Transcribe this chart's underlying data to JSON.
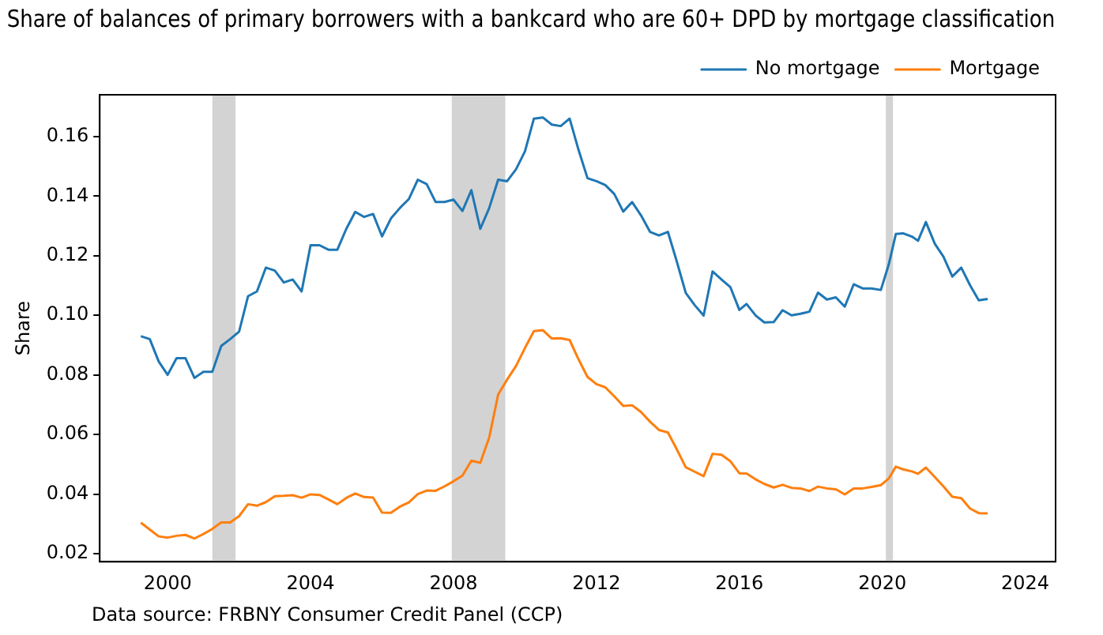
{
  "chart_data": {
    "type": "line",
    "title": "Share of balances of primary borrowers with a bankcard who are 60+ DPD by mortgage classification",
    "ylabel": "Share",
    "x": [
      1999.25,
      1999.5,
      1999.75,
      2000.0,
      2000.25,
      2000.5,
      2000.75,
      2001.0,
      2001.25,
      2001.5,
      2001.75,
      2002.0,
      2002.25,
      2002.5,
      2002.75,
      2003.0,
      2003.25,
      2003.5,
      2003.75,
      2004.0,
      2004.25,
      2004.5,
      2004.75,
      2005.0,
      2005.25,
      2005.5,
      2005.75,
      2006.0,
      2006.25,
      2006.5,
      2006.75,
      2007.0,
      2007.25,
      2007.5,
      2007.75,
      2008.0,
      2008.25,
      2008.5,
      2008.75,
      2009.0,
      2009.25,
      2009.5,
      2009.75,
      2010.0,
      2010.25,
      2010.5,
      2010.75,
      2011.0,
      2011.25,
      2011.5,
      2011.75,
      2012.0,
      2012.25,
      2012.5,
      2012.75,
      2013.0,
      2013.25,
      2013.5,
      2013.75,
      2014.0,
      2014.25,
      2014.5,
      2014.75,
      2015.0,
      2015.25,
      2015.5,
      2015.75,
      2016.0,
      2016.2,
      2016.46,
      2016.7,
      2016.96,
      2017.21,
      2017.46,
      2017.71,
      2017.96,
      2018.2,
      2018.45,
      2018.7,
      2018.95,
      2019.2,
      2019.45,
      2019.7,
      2019.96,
      2020.18,
      2020.38,
      2020.58,
      2020.83,
      2021.0,
      2021.22,
      2021.47,
      2021.71,
      2021.96,
      2022.21,
      2022.46,
      2022.7,
      2022.95
    ],
    "series": [
      {
        "name": "No mortgage",
        "color": "#1f77b4",
        "values": [
          0.093,
          0.092,
          0.0845,
          0.08,
          0.0856,
          0.0856,
          0.079,
          0.081,
          0.081,
          0.0897,
          0.092,
          0.0945,
          0.1064,
          0.108,
          0.116,
          0.115,
          0.111,
          0.112,
          0.108,
          0.1235,
          0.1235,
          0.122,
          0.122,
          0.129,
          0.1347,
          0.133,
          0.134,
          0.1265,
          0.1325,
          0.136,
          0.139,
          0.1455,
          0.144,
          0.138,
          0.138,
          0.1388,
          0.135,
          0.142,
          0.129,
          0.136,
          0.1455,
          0.145,
          0.149,
          0.155,
          0.166,
          0.1664,
          0.164,
          0.1635,
          0.166,
          0.1555,
          0.146,
          0.145,
          0.1437,
          0.1407,
          0.1348,
          0.138,
          0.1335,
          0.128,
          0.1268,
          0.128,
          0.118,
          0.1075,
          0.1034,
          0.0999,
          0.1147,
          0.112,
          0.1094,
          0.1018,
          0.1038,
          0.0999,
          0.0976,
          0.0977,
          0.1017,
          0.1,
          0.1005,
          0.1012,
          0.1076,
          0.1053,
          0.106,
          0.1029,
          0.1104,
          0.109,
          0.109,
          0.1085,
          0.117,
          0.1273,
          0.1275,
          0.1264,
          0.125,
          0.1313,
          0.124,
          0.1197,
          0.113,
          0.116,
          0.11,
          0.105,
          0.1055
        ]
      },
      {
        "name": "Mortgage",
        "color": "#ff7f0e",
        "values": [
          0.0304,
          0.0281,
          0.0258,
          0.0254,
          0.026,
          0.0263,
          0.0251,
          0.0266,
          0.0283,
          0.0305,
          0.0305,
          0.0326,
          0.0366,
          0.0361,
          0.0373,
          0.0393,
          0.0394,
          0.0396,
          0.0388,
          0.0399,
          0.0397,
          0.0382,
          0.0366,
          0.0387,
          0.0402,
          0.039,
          0.0388,
          0.0338,
          0.0337,
          0.0358,
          0.0372,
          0.04,
          0.0412,
          0.0411,
          0.0426,
          0.0443,
          0.0462,
          0.0512,
          0.0505,
          0.059,
          0.0734,
          0.0784,
          0.083,
          0.089,
          0.0947,
          0.095,
          0.0922,
          0.0923,
          0.0917,
          0.0852,
          0.0793,
          0.0769,
          0.0758,
          0.0728,
          0.0696,
          0.0698,
          0.0675,
          0.0643,
          0.0615,
          0.0607,
          0.055,
          0.049,
          0.0475,
          0.046,
          0.0535,
          0.0532,
          0.051,
          0.047,
          0.0469,
          0.0449,
          0.0434,
          0.0422,
          0.0431,
          0.0421,
          0.0419,
          0.041,
          0.0425,
          0.0419,
          0.0416,
          0.0399,
          0.0419,
          0.0419,
          0.0424,
          0.043,
          0.0452,
          0.0492,
          0.0483,
          0.0476,
          0.0468,
          0.0489,
          0.0457,
          0.0426,
          0.0391,
          0.0386,
          0.0351,
          0.0336,
          0.0335
        ]
      }
    ],
    "xlim": [
      1998.1,
      2024.85
    ],
    "xticks": [
      2000,
      2004,
      2008,
      2012,
      2016,
      2020,
      2024
    ],
    "ylim": [
      0.0173,
      0.174
    ],
    "yticks": [
      {
        "value": 0.02,
        "label": "0.02"
      },
      {
        "value": 0.04,
        "label": "0.04"
      },
      {
        "value": 0.06,
        "label": "0.06"
      },
      {
        "value": 0.08,
        "label": "0.08"
      },
      {
        "value": 0.1,
        "label": "0.10"
      },
      {
        "value": 0.12,
        "label": "0.12"
      },
      {
        "value": 0.14,
        "label": "0.14"
      },
      {
        "value": 0.16,
        "label": "0.16"
      }
    ],
    "bands": [
      {
        "axis": "x",
        "from": 2001.25,
        "to": 2001.9,
        "color": "#d3d3d3"
      },
      {
        "axis": "x",
        "from": 2007.95,
        "to": 2009.45,
        "color": "#d3d3d3"
      },
      {
        "axis": "x",
        "from": 2020.1,
        "to": 2020.3,
        "color": "#d3d3d3"
      }
    ],
    "grid": false,
    "legend": "top right",
    "marker": "none",
    "line_style": "solid",
    "annotations": [
      "Data source: FRBNY Consumer Credit Panel (CCP)"
    ]
  }
}
